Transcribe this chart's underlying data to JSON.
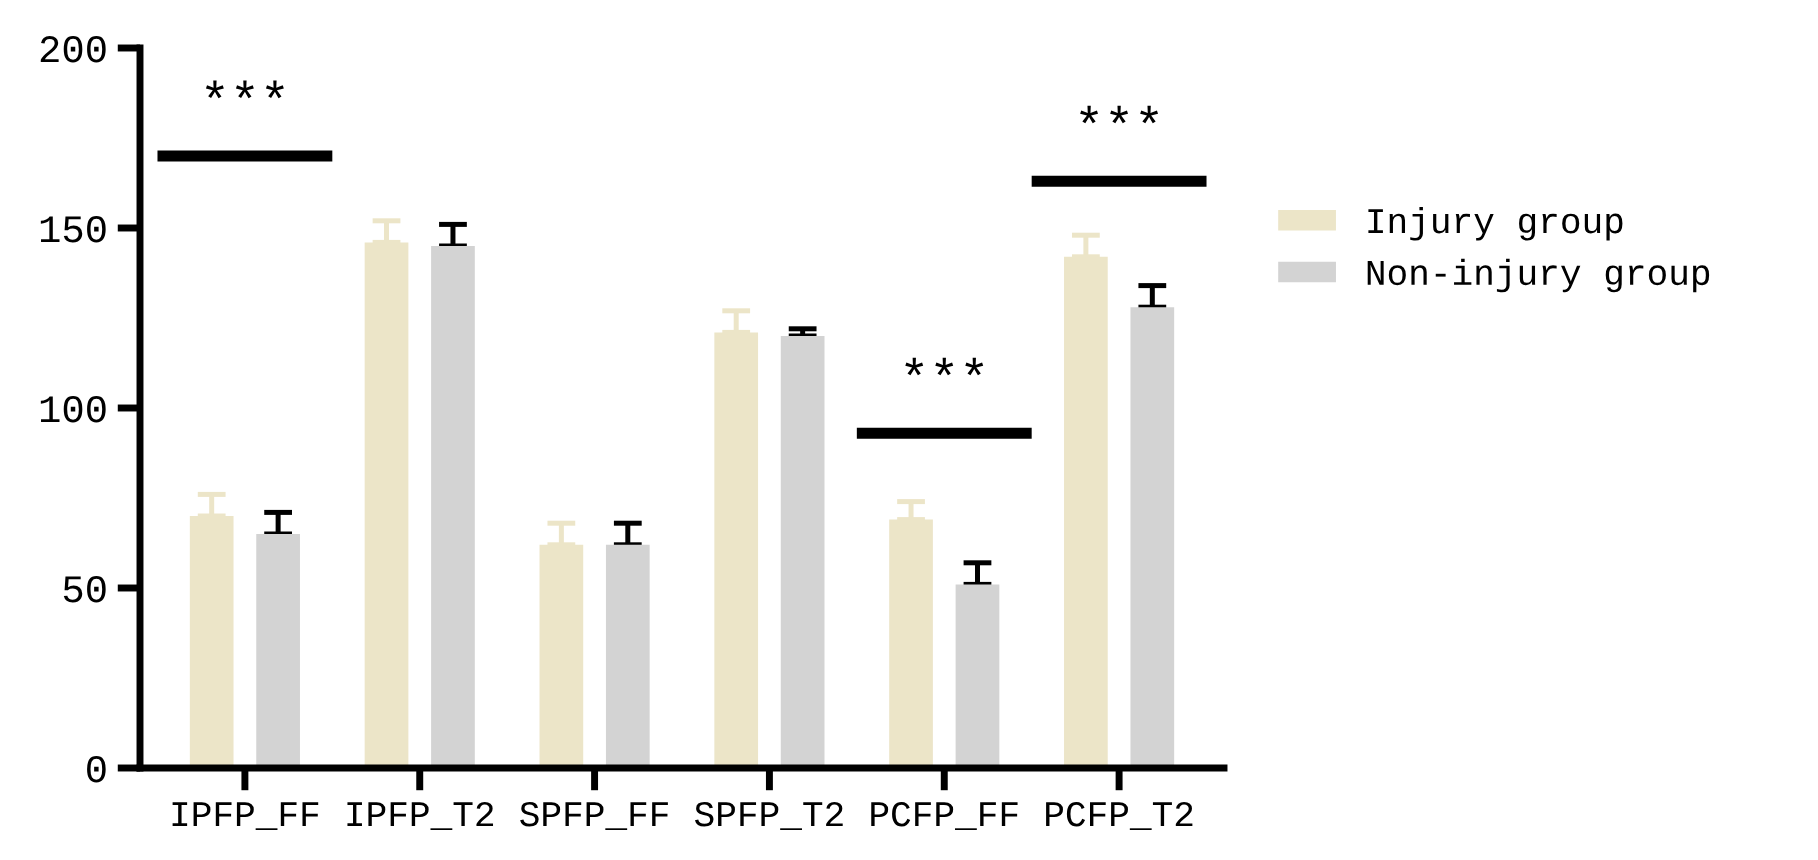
{
  "chart_data": {
    "type": "bar",
    "categories": [
      "IPFP_FF",
      "IPFP_T2",
      "SPFP_FF",
      "SPFP_T2",
      "PCFP_FF",
      "PCFP_T2"
    ],
    "series": [
      {
        "name": "Injury group",
        "color": "#ece5c8",
        "values": [
          70,
          146,
          62,
          121,
          69,
          142
        ],
        "errors": [
          [
            70,
            76
          ],
          [
            146,
            152
          ],
          [
            62,
            68
          ],
          [
            121,
            127
          ],
          [
            69,
            74
          ],
          [
            142,
            148
          ]
        ]
      },
      {
        "name": "Non-injury group",
        "color": "#d3d3d3",
        "values": [
          65,
          145,
          62,
          120,
          51,
          128
        ],
        "errors": [
          [
            65,
            71
          ],
          [
            145,
            151
          ],
          [
            62,
            68
          ],
          [
            120,
            122
          ],
          [
            51,
            57
          ],
          [
            128,
            134
          ]
        ]
      }
    ],
    "ylim": [
      0,
      200
    ],
    "yticks": [
      0,
      50,
      100,
      150,
      200
    ],
    "annotations": [
      "***",
      "***",
      "***"
    ],
    "grid": false,
    "legend": "right"
  }
}
